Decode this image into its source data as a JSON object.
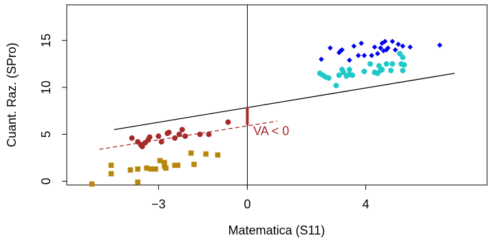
{
  "chart_data": {
    "type": "scatter",
    "xlabel": "Matematica (S11)",
    "ylabel": "Cuant. Raz. (SPro)",
    "xlim": [
      -6.1,
      8.1
    ],
    "ylim": [
      -0.4,
      18.8
    ],
    "x_ticks": [
      -3,
      0,
      4
    ],
    "x_tick_labels": [
      "−3",
      "0",
      "4"
    ],
    "y_ticks": [
      0,
      5,
      10,
      15
    ],
    "y_tick_labels": [
      "0",
      "5",
      "10",
      "15"
    ],
    "grid": false,
    "vertical_line_x": 0,
    "colors": {
      "dark_red": "#a52a2a",
      "goldenrod": "#b8860b",
      "blue": "#0000ee",
      "cyan": "#20c8c8",
      "line": "#000000"
    },
    "series": [
      {
        "marker": "circle",
        "color": "#a52a2a",
        "points": [
          [
            -3.9,
            4.6
          ],
          [
            -3.7,
            4.2
          ],
          [
            -3.6,
            3.9
          ],
          [
            -3.55,
            3.7
          ],
          [
            -3.45,
            4.1
          ],
          [
            -3.35,
            4.4
          ],
          [
            -3.3,
            4.7
          ],
          [
            -3.0,
            4.8
          ],
          [
            -2.9,
            4.2
          ],
          [
            -2.7,
            5.1
          ],
          [
            -2.65,
            5.2
          ],
          [
            -2.45,
            4.6
          ],
          [
            -2.3,
            5.0
          ],
          [
            -2.2,
            5.5
          ],
          [
            -2.1,
            4.8
          ],
          [
            -1.6,
            5.0
          ],
          [
            -1.3,
            5.0
          ],
          [
            -0.65,
            6.3
          ]
        ]
      },
      {
        "marker": "square",
        "color": "#b8860b",
        "points": [
          [
            -5.25,
            -0.3
          ],
          [
            -4.6,
            1.7
          ],
          [
            -4.6,
            0.8
          ],
          [
            -3.95,
            1.2
          ],
          [
            -3.7,
            1.3
          ],
          [
            -3.7,
            -0.1
          ],
          [
            -3.4,
            1.4
          ],
          [
            -3.25,
            1.3
          ],
          [
            -3.1,
            1.3
          ],
          [
            -2.95,
            2.2
          ],
          [
            -2.8,
            1.6
          ],
          [
            -2.8,
            2.0
          ],
          [
            -2.75,
            1.4
          ],
          [
            -2.45,
            1.7
          ],
          [
            -2.35,
            1.7
          ],
          [
            -1.9,
            3.0
          ],
          [
            -1.8,
            1.8
          ],
          [
            -1.4,
            2.9
          ],
          [
            -1.0,
            2.8
          ]
        ]
      },
      {
        "marker": "diamond",
        "color": "#0000ee",
        "points": [
          [
            2.5,
            13.0
          ],
          [
            2.8,
            14.2
          ],
          [
            3.1,
            13.7
          ],
          [
            3.15,
            13.9
          ],
          [
            3.2,
            14.0
          ],
          [
            3.45,
            12.9
          ],
          [
            3.6,
            14.4
          ],
          [
            3.75,
            13.4
          ],
          [
            3.85,
            14.7
          ],
          [
            3.95,
            13.4
          ],
          [
            4.2,
            13.4
          ],
          [
            4.3,
            14.3
          ],
          [
            4.4,
            13.6
          ],
          [
            4.5,
            14.2
          ],
          [
            4.55,
            14.7
          ],
          [
            4.6,
            13.9
          ],
          [
            4.65,
            14.9
          ],
          [
            4.7,
            14.0
          ],
          [
            4.75,
            14.2
          ],
          [
            4.9,
            14.9
          ],
          [
            5.0,
            14.0
          ],
          [
            5.1,
            14.6
          ],
          [
            5.25,
            14.4
          ],
          [
            5.5,
            14.3
          ],
          [
            6.5,
            14.5
          ]
        ]
      },
      {
        "marker": "circle",
        "color": "#20c8c8",
        "points": [
          [
            2.45,
            11.5
          ],
          [
            2.55,
            11.3
          ],
          [
            2.65,
            11.1
          ],
          [
            2.75,
            11.0
          ],
          [
            3.0,
            10.2
          ],
          [
            3.1,
            11.3
          ],
          [
            3.2,
            11.9
          ],
          [
            3.25,
            11.6
          ],
          [
            3.35,
            11.2
          ],
          [
            3.45,
            11.9
          ],
          [
            3.45,
            11.4
          ],
          [
            3.55,
            11.3
          ],
          [
            3.95,
            11.7
          ],
          [
            4.15,
            12.5
          ],
          [
            4.3,
            11.6
          ],
          [
            4.4,
            11.5
          ],
          [
            4.45,
            12.3
          ],
          [
            4.5,
            11.8
          ],
          [
            4.55,
            11.9
          ],
          [
            4.7,
            12.5
          ],
          [
            4.85,
            11.8
          ],
          [
            4.9,
            12.5
          ],
          [
            5.15,
            13.6
          ],
          [
            5.2,
            12.5
          ],
          [
            5.25,
            13.2
          ],
          [
            5.25,
            11.8
          ],
          [
            5.3,
            12.4
          ]
        ]
      }
    ],
    "lines": [
      {
        "style": "solid",
        "color": "#000000",
        "x": [
          -4.5,
          7.0
        ],
        "y": [
          5.5,
          11.5
        ]
      },
      {
        "style": "dashed",
        "color": "#a52a2a",
        "x": [
          -5.0,
          1.0
        ],
        "y": [
          3.4,
          6.4
        ]
      }
    ],
    "gap_segment": {
      "color": "#a52a2a",
      "x": 0,
      "y": [
        6.0,
        7.9
      ]
    },
    "annotations": [
      {
        "text": "VA < 0",
        "x": 0.2,
        "y": 4.9,
        "color": "#a52a2a"
      }
    ]
  }
}
